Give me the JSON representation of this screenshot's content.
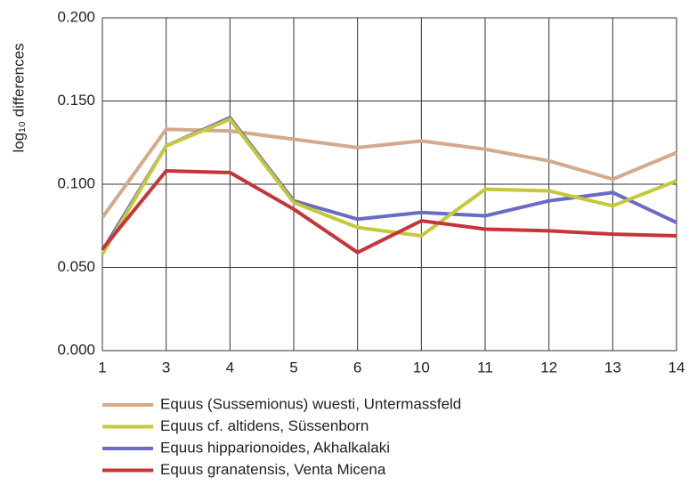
{
  "chart_data": {
    "type": "line",
    "y_label": "log₁₀ differences",
    "categories": [
      "1",
      "3",
      "4",
      "5",
      "6",
      "10",
      "11",
      "12",
      "13",
      "14"
    ],
    "ylim": [
      0,
      0.2
    ],
    "yticks": [
      {
        "value": 0,
        "label": "0.000"
      },
      {
        "value": 0.05,
        "label": "0.050"
      },
      {
        "value": 0.1,
        "label": "0.100"
      },
      {
        "value": 0.15,
        "label": "0.150"
      },
      {
        "value": 0.2,
        "label": "0.200"
      }
    ],
    "grid": true,
    "legend": "bottom",
    "series": [
      {
        "name": "Equus (Sussemionus) wuesti, Untermassfeld",
        "color": "#d4a98c",
        "values": [
          0.08,
          0.133,
          0.132,
          0.127,
          0.122,
          0.126,
          0.121,
          0.114,
          0.103,
          0.119
        ]
      },
      {
        "name": "Equus cf. altidens, Süssenborn",
        "color": "#c5c83a",
        "values": [
          0.058,
          0.123,
          0.139,
          0.089,
          0.074,
          0.069,
          0.097,
          0.096,
          0.087,
          0.102
        ]
      },
      {
        "name": "Equus hipparionoides, Akhalkalaki",
        "color": "#6b6bc6",
        "values": [
          0.06,
          0.123,
          0.14,
          0.09,
          0.079,
          0.083,
          0.081,
          0.09,
          0.095,
          0.077
        ]
      },
      {
        "name": "Equus granatensis, Venta Micena",
        "color": "#c6353a",
        "values": [
          0.061,
          0.108,
          0.107,
          0.085,
          0.059,
          0.078,
          0.073,
          0.072,
          0.07,
          0.069
        ]
      }
    ]
  }
}
